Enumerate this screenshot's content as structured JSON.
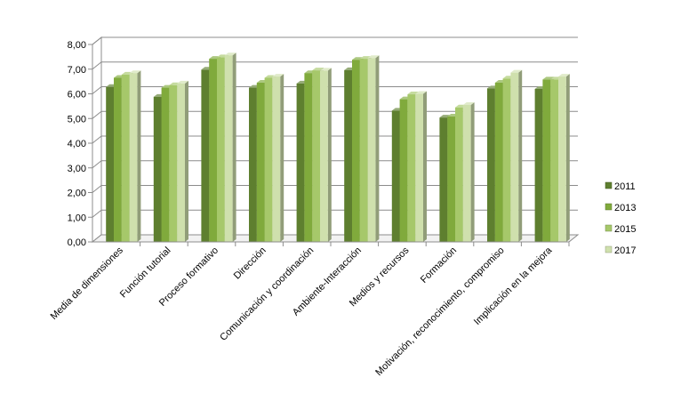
{
  "chart_data": {
    "type": "bar",
    "categories": [
      "Media de dimensiones",
      "Función tutorial",
      "Proceso formativo",
      "Dirección",
      "Comunicación y coordinación",
      "Ambiente-Interacción",
      "Medios y recursos",
      "Formación",
      "Motivación, reconocimiento, compromiso",
      "Implicación en la mejora"
    ],
    "series": [
      {
        "name": "2011",
        "color": "#5e7f2f",
        "values": [
          6.28,
          5.88,
          6.98,
          6.25,
          6.42,
          6.96,
          5.32,
          5.04,
          6.22,
          6.2
        ]
      },
      {
        "name": "2013",
        "color": "#80aa3c",
        "values": [
          6.65,
          6.25,
          7.42,
          6.45,
          6.84,
          7.38,
          5.78,
          5.08,
          6.45,
          6.58
        ]
      },
      {
        "name": "2015",
        "color": "#a6c86a",
        "values": [
          6.78,
          6.35,
          7.48,
          6.65,
          6.95,
          7.42,
          5.98,
          5.45,
          6.62,
          6.58
        ]
      },
      {
        "name": "2017",
        "color": "#cfe0ad",
        "values": [
          6.84,
          6.42,
          7.56,
          6.7,
          6.94,
          7.45,
          6.0,
          5.55,
          6.86,
          6.7
        ]
      }
    ],
    "title": "",
    "xlabel": "",
    "ylabel": "",
    "ylim": [
      0,
      8
    ],
    "yticks": [
      "0,00",
      "1,00",
      "2,00",
      "3,00",
      "4,00",
      "5,00",
      "6,00",
      "7,00",
      "8,00"
    ],
    "grid": true,
    "legend_position": "right"
  }
}
